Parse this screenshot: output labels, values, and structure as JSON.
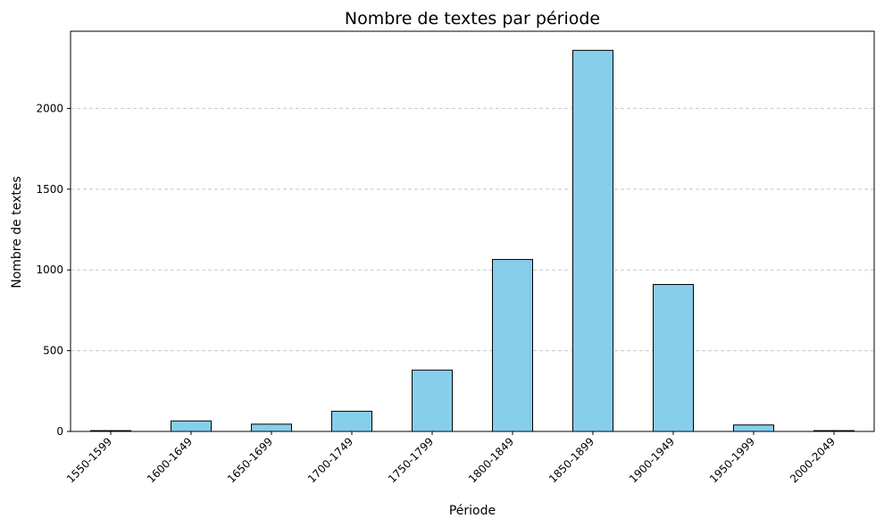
{
  "chart_data": {
    "type": "bar",
    "title": "Nombre de textes par période",
    "xlabel": "Période",
    "ylabel": "Nombre de textes",
    "categories": [
      "1550-1599",
      "1600-1649",
      "1650-1699",
      "1700-1749",
      "1750-1799",
      "1800-1849",
      "1850-1899",
      "1900-1949",
      "1950-1999",
      "2000-2049"
    ],
    "values": [
      5,
      65,
      45,
      125,
      380,
      1065,
      2360,
      910,
      40,
      5
    ],
    "ylim": [
      0,
      2478
    ],
    "yticks": [
      0,
      500,
      1000,
      1500,
      2000
    ],
    "grid": "y-dashed",
    "colors": {
      "bar_fill": "#87ceeb",
      "bar_edge": "#000000",
      "grid": "#c8c8c8"
    }
  }
}
